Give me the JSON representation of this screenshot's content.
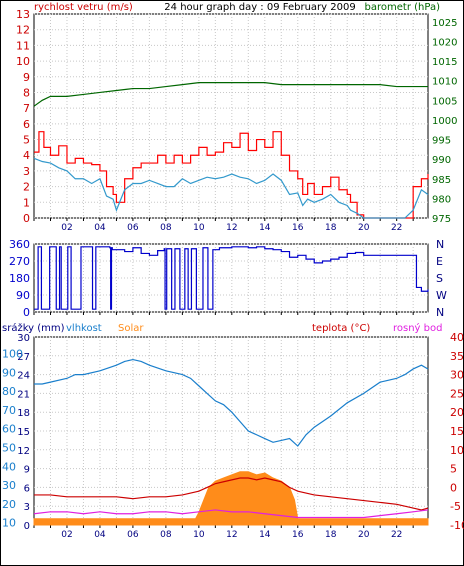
{
  "chart_data": [
    {
      "type": "line",
      "title": "24 hour graph day : 09 February 2009",
      "left_label": "rychlost vetru (m/s)",
      "right_label": "barometr (hPa)",
      "left_ticks": [
        "0",
        "1",
        "2",
        "3",
        "4",
        "5",
        "6",
        "7",
        "8",
        "9",
        "10",
        "11",
        "12",
        "13"
      ],
      "right_ticks": [
        "975",
        "980",
        "985",
        "990",
        "995",
        "1000",
        "1005",
        "1010",
        "1015",
        "1020",
        "1025"
      ],
      "x_ticks": [
        "02",
        "04",
        "06",
        "08",
        "10",
        "12",
        "14",
        "16",
        "18",
        "20",
        "22"
      ],
      "ylim_left": [
        0,
        13
      ],
      "ylim_right": [
        975,
        1027
      ],
      "xlim": [
        0,
        23.9
      ],
      "colors": {
        "gust": "#ff0000",
        "wind": "#3399cc",
        "pressure": "#006600"
      },
      "series": [
        {
          "key": "pressure",
          "axis": "right",
          "x": [
            0,
            0.5,
            1,
            2,
            3,
            4,
            5,
            6,
            7,
            8,
            9,
            10,
            11,
            12,
            13,
            14,
            15,
            16,
            17,
            18,
            19,
            20,
            21,
            22,
            23,
            23.9
          ],
          "values": [
            1003.5,
            1005,
            1006,
            1006,
            1006.5,
            1007,
            1007.5,
            1008,
            1008,
            1008.5,
            1009,
            1009.5,
            1009.5,
            1009.5,
            1009.5,
            1009.5,
            1009,
            1009,
            1009,
            1009,
            1009,
            1009,
            1009,
            1008.5,
            1008.5,
            1008.5
          ]
        },
        {
          "key": "gust",
          "axis": "left",
          "x": [
            0,
            0.3,
            0.6,
            1,
            1.5,
            2,
            2.5,
            3,
            3.5,
            4,
            4.4,
            4.8,
            5,
            5.5,
            6,
            6.5,
            7,
            7.5,
            8,
            8.5,
            9,
            9.5,
            10,
            10.5,
            11,
            11.5,
            12,
            12.5,
            13,
            13.5,
            14,
            14.5,
            15,
            15.5,
            16,
            16.3,
            16.6,
            17,
            17.5,
            18,
            18.5,
            19,
            19.2,
            19.6,
            20,
            21,
            22,
            22.5,
            23,
            23.5,
            23.9
          ],
          "values": [
            4.2,
            5.5,
            4.5,
            4,
            4.6,
            3.5,
            3.8,
            3.5,
            3.4,
            3,
            2,
            1.5,
            1,
            2.5,
            3.2,
            3.5,
            3.5,
            4,
            3.5,
            4,
            3.5,
            4,
            4.5,
            4,
            4.2,
            4.8,
            4.5,
            5.4,
            4.3,
            5,
            4.5,
            5.5,
            4,
            3,
            2.5,
            1.5,
            2.2,
            1.5,
            2,
            2.6,
            1.8,
            1.5,
            1,
            0.2,
            0,
            0,
            0,
            0,
            2,
            2.5,
            2.8
          ]
        },
        {
          "key": "wind",
          "axis": "left",
          "x": [
            0,
            0.5,
            1,
            1.5,
            2,
            2.5,
            3,
            3.5,
            4,
            4.4,
            4.8,
            5,
            5.5,
            6,
            6.5,
            7,
            7.5,
            8,
            8.5,
            9,
            9.5,
            10,
            10.5,
            11,
            11.5,
            12,
            12.5,
            13,
            13.5,
            14,
            14.5,
            15,
            15.5,
            16,
            16.3,
            16.6,
            17,
            17.5,
            18,
            18.5,
            19,
            19.2,
            19.6,
            20,
            21,
            22,
            22.5,
            23,
            23.5,
            23.9
          ],
          "values": [
            3.8,
            3.6,
            3.5,
            3.2,
            3,
            2.5,
            2.5,
            2.2,
            2.5,
            1.4,
            1.2,
            0.5,
            1.8,
            2.2,
            2.2,
            2.4,
            2.2,
            2,
            2,
            2.5,
            2.2,
            2.4,
            2.6,
            2.5,
            2.6,
            2.8,
            2.6,
            2.5,
            2.2,
            2.4,
            2.8,
            2.4,
            1.5,
            1.6,
            0.8,
            1.2,
            1,
            1.2,
            1.5,
            1,
            0.8,
            0.5,
            0.3,
            0,
            0,
            0,
            0,
            0.5,
            1.8,
            1.5
          ]
        }
      ]
    },
    {
      "type": "line",
      "y_ticks": [
        "0",
        "90",
        "180",
        "270",
        "360"
      ],
      "right_ticks": [
        "N",
        "W",
        "S",
        "E",
        "N"
      ],
      "ylim": [
        0,
        360
      ],
      "xlim": [
        0,
        23.9
      ],
      "colors": {
        "direction": "#0000cc"
      },
      "series": [
        {
          "key": "direction",
          "x": [
            0,
            0.2,
            0.25,
            0.4,
            0.45,
            0.9,
            0.95,
            1.3,
            1.35,
            1.5,
            1.55,
            1.6,
            1.65,
            2,
            2.05,
            2.2,
            2.25,
            2.8,
            2.85,
            3.5,
            3.55,
            3.7,
            3.75,
            4.5,
            4.6,
            4.65,
            4.7,
            4.75,
            5.5,
            6,
            6.5,
            7,
            7.5,
            7.9,
            7.95,
            8,
            8.05,
            8.3,
            8.35,
            8.5,
            8.55,
            8.8,
            8.85,
            9.1,
            9.15,
            9.3,
            9.35,
            9.5,
            9.55,
            9.8,
            9.85,
            10.2,
            10.25,
            10.5,
            10.55,
            10.8,
            10.85,
            11.2,
            11.25,
            12,
            12.5,
            13,
            13.5,
            14,
            14.5,
            15,
            15.5,
            16,
            16.5,
            17,
            17.5,
            18,
            18.5,
            19,
            19.5,
            20,
            20.5,
            21,
            21.5,
            22,
            22.5,
            23,
            23.2,
            23.5,
            23.9
          ],
          "values": [
            15,
            15,
            345,
            345,
            15,
            15,
            345,
            345,
            15,
            15,
            345,
            345,
            15,
            15,
            345,
            345,
            15,
            15,
            345,
            345,
            15,
            15,
            345,
            345,
            340,
            15,
            340,
            330,
            320,
            340,
            310,
            300,
            325,
            335,
            15,
            15,
            335,
            335,
            15,
            15,
            335,
            335,
            15,
            15,
            335,
            335,
            15,
            15,
            335,
            335,
            15,
            15,
            340,
            340,
            15,
            15,
            330,
            330,
            340,
            345,
            345,
            340,
            345,
            335,
            330,
            320,
            290,
            300,
            280,
            260,
            270,
            280,
            290,
            310,
            315,
            300,
            300,
            300,
            300,
            300,
            300,
            300,
            130,
            110,
            120
          ]
        }
      ]
    },
    {
      "type": "line",
      "labels": {
        "rain": "srážky (mm)",
        "humidity": "vlhkost",
        "solar": "Solar",
        "temp": "teplota (°C)",
        "dew": "rosný bod"
      },
      "rain_ticks": [
        "0",
        "3",
        "6",
        "9",
        "12",
        "15",
        "18",
        "21",
        "24",
        "27",
        "30"
      ],
      "humidity_ticks": [
        "10",
        "20",
        "30",
        "40",
        "50",
        "60",
        "70",
        "80",
        "90",
        "100"
      ],
      "temp_ticks": [
        "-10",
        "-5",
        "0",
        "5",
        "10",
        "15",
        "20",
        "25",
        "30",
        "35",
        "40"
      ],
      "x_ticks": [
        "02",
        "04",
        "06",
        "08",
        "10",
        "12",
        "14",
        "16",
        "18",
        "20",
        "22"
      ],
      "xlim": [
        0,
        23.9
      ],
      "colors": {
        "humidity": "#1a7fcc",
        "solar": "#ff8c1a",
        "temp": "#cc0000",
        "dew": "#e020e0"
      },
      "series": [
        {
          "key": "humidity",
          "axis": "humidity",
          "x": [
            0,
            0.5,
            1,
            2,
            2.5,
            3,
            4,
            5,
            5.5,
            6,
            6.5,
            7,
            8,
            9,
            9.5,
            10,
            10.5,
            11,
            11.5,
            12,
            12.5,
            13,
            13.5,
            14,
            14.5,
            15,
            15.5,
            16,
            16.5,
            17,
            18,
            19,
            20,
            21,
            22,
            22.5,
            23,
            23.5,
            23.9
          ],
          "values": [
            75,
            75,
            76,
            78,
            80,
            80,
            82,
            85,
            87,
            88,
            87,
            85,
            82,
            80,
            78,
            74,
            70,
            66,
            64,
            60,
            55,
            50,
            48,
            46,
            44,
            45,
            46,
            42,
            48,
            52,
            58,
            65,
            70,
            76,
            78,
            80,
            83,
            85,
            83
          ]
        },
        {
          "key": "temp",
          "axis": "temp",
          "x": [
            0,
            1,
            2,
            3,
            4,
            5,
            6,
            7,
            8,
            9,
            9.5,
            10,
            10.5,
            11,
            11.5,
            12,
            12.5,
            13,
            13.5,
            14,
            14.5,
            15,
            15.5,
            16,
            16.5,
            17,
            18,
            19,
            20,
            21,
            22,
            22.5,
            23,
            23.5,
            23.9
          ],
          "values": [
            -2,
            -2,
            -2.5,
            -2.5,
            -2.5,
            -2.5,
            -3,
            -2.5,
            -2.5,
            -2,
            -1.5,
            -1,
            0,
            1,
            1.5,
            2,
            2.5,
            2.5,
            2,
            2.5,
            2,
            1.5,
            0,
            -1,
            -1.5,
            -2,
            -2.5,
            -3,
            -3.5,
            -4,
            -4.5,
            -5,
            -5.5,
            -6,
            -5.5
          ]
        },
        {
          "key": "dew",
          "axis": "temp",
          "x": [
            0,
            1,
            2,
            3,
            4,
            5,
            6,
            7,
            8,
            9,
            10,
            11,
            12,
            13,
            14,
            15,
            16,
            17,
            18,
            19,
            20,
            21,
            22,
            23,
            23.9
          ],
          "values": [
            -7,
            -6.5,
            -6.5,
            -7,
            -6.5,
            -7,
            -7,
            -6.5,
            -6.5,
            -7,
            -6.5,
            -6,
            -6.5,
            -6.5,
            -7,
            -7.5,
            -8,
            -8,
            -8,
            -8,
            -8,
            -7.5,
            -7,
            -6.5,
            -6
          ]
        },
        {
          "key": "solar",
          "axis": "rain",
          "x": [
            0,
            5,
            6,
            7,
            8,
            9,
            9.8,
            10,
            10.3,
            10.6,
            11,
            11.5,
            12,
            12.5,
            13,
            13.5,
            14,
            14.5,
            15,
            15.5,
            15.8,
            16,
            17,
            18,
            19,
            20,
            21,
            22,
            23,
            23.9
          ],
          "values": [
            1,
            1,
            1,
            1,
            1,
            1,
            1,
            2,
            4,
            6,
            7,
            7.5,
            8,
            8.5,
            8.5,
            8,
            8.3,
            7.5,
            7,
            6,
            4,
            1,
            1,
            1,
            1,
            1,
            1,
            1,
            1,
            1
          ]
        }
      ]
    }
  ]
}
